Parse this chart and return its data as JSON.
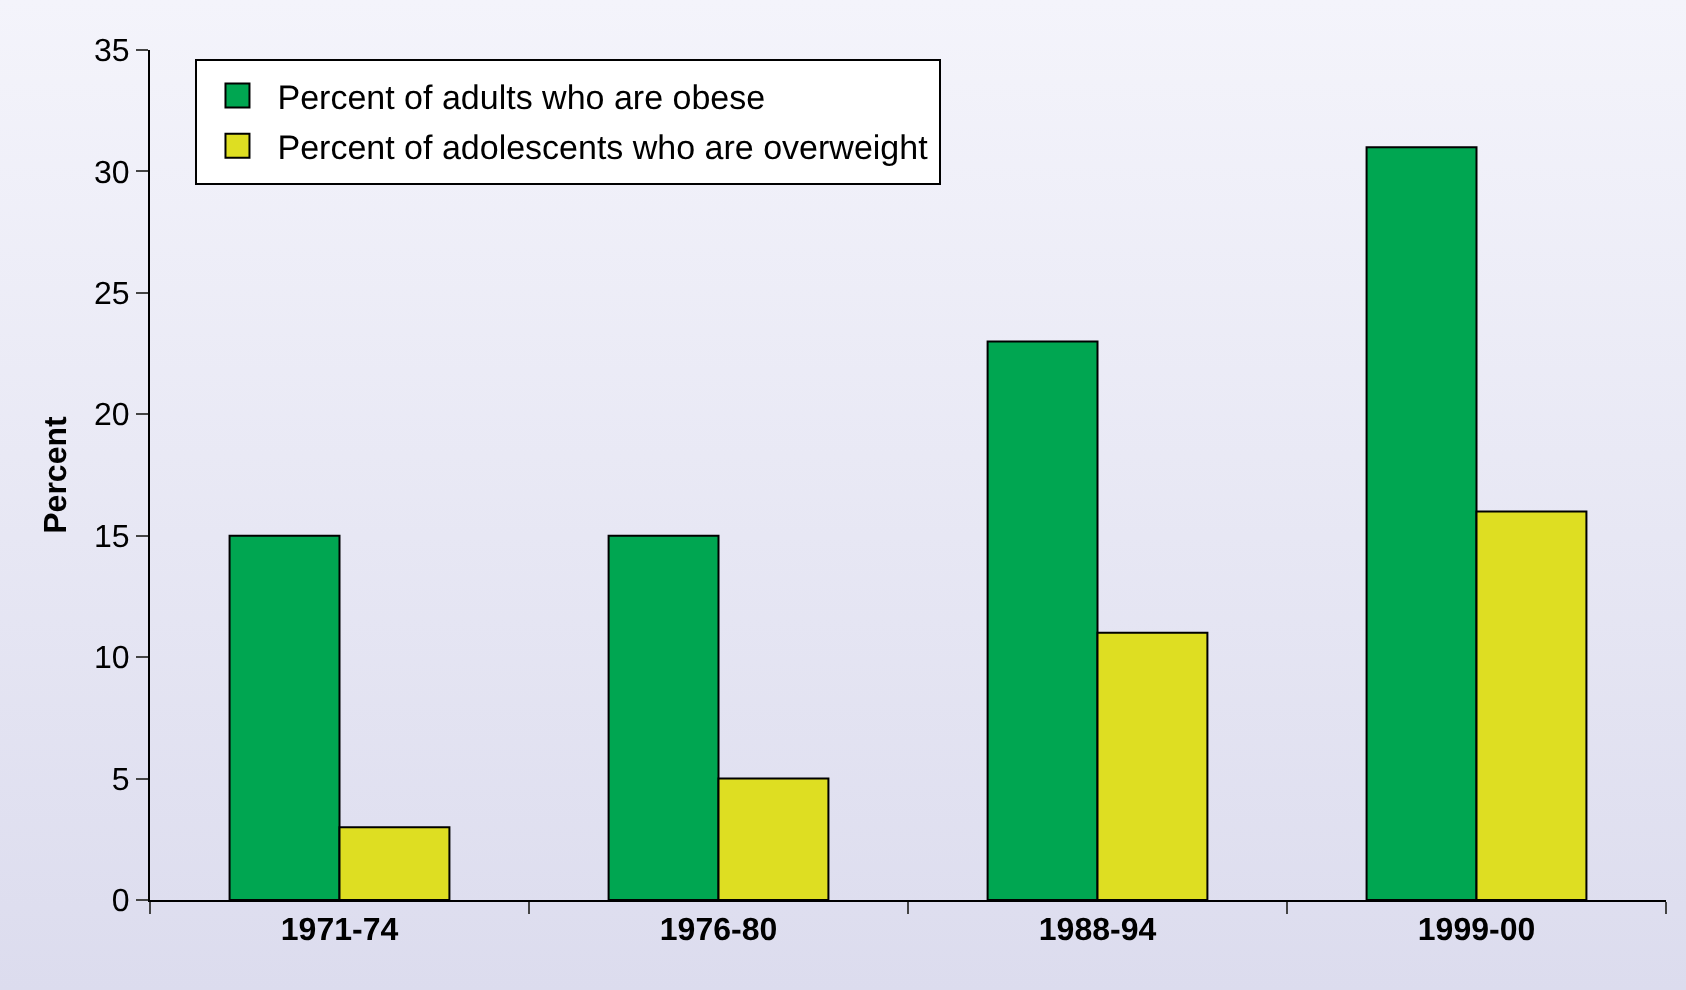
{
  "chart_data": {
    "type": "bar",
    "ylabel": "Percent",
    "categories": [
      "1971-74",
      "1976-80",
      "1988-94",
      "1999-00"
    ],
    "series": [
      {
        "name": "Percent of adults who are obese",
        "color": "#00a651",
        "values": [
          15,
          15,
          23,
          31
        ]
      },
      {
        "name": "Percent of adolescents who are overweight",
        "color": "#dede22",
        "values": [
          3,
          5,
          11,
          16
        ]
      }
    ],
    "ylim": [
      0,
      35
    ],
    "yticks": [
      0,
      5,
      10,
      15,
      20,
      25,
      30,
      35
    ],
    "grid": false,
    "legend": "top left"
  }
}
